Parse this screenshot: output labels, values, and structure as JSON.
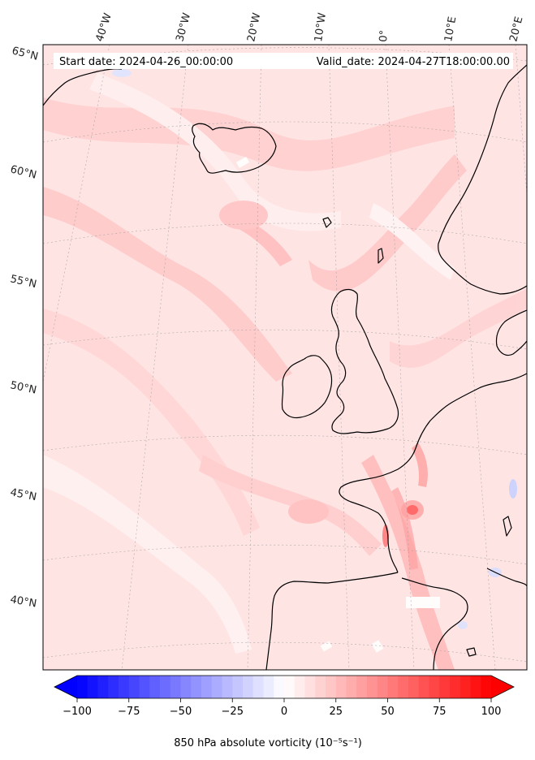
{
  "header": {
    "start_date": "Start date: 2024-04-26_00:00:00",
    "valid_date": "Valid_date: 2024-04-27T18:00:00.00"
  },
  "map": {
    "projection": "polar-stereographic",
    "background_color": "#ffe3e3",
    "coastline_color": "#000000",
    "gridline_style": "dotted",
    "lon_labels": [
      "40°W",
      "30°W",
      "20°W",
      "10°W",
      "0°",
      "10°E",
      "20°E"
    ],
    "lat_labels": [
      "65°N",
      "60°N",
      "55°N",
      "50°N",
      "45°N",
      "40°N"
    ]
  },
  "colorbar": {
    "min": -100,
    "max": 100,
    "ticks": [
      "−100",
      "−75",
      "−50",
      "−25",
      "0",
      "25",
      "50",
      "75",
      "100"
    ],
    "label": "850 hPa absolute vorticity",
    "label_units": "(10⁻⁵s⁻¹)",
    "cmap": "bwr",
    "extend": "both",
    "color_low": "#0000ff",
    "color_mid": "#ffffff",
    "color_high": "#ff0000"
  }
}
